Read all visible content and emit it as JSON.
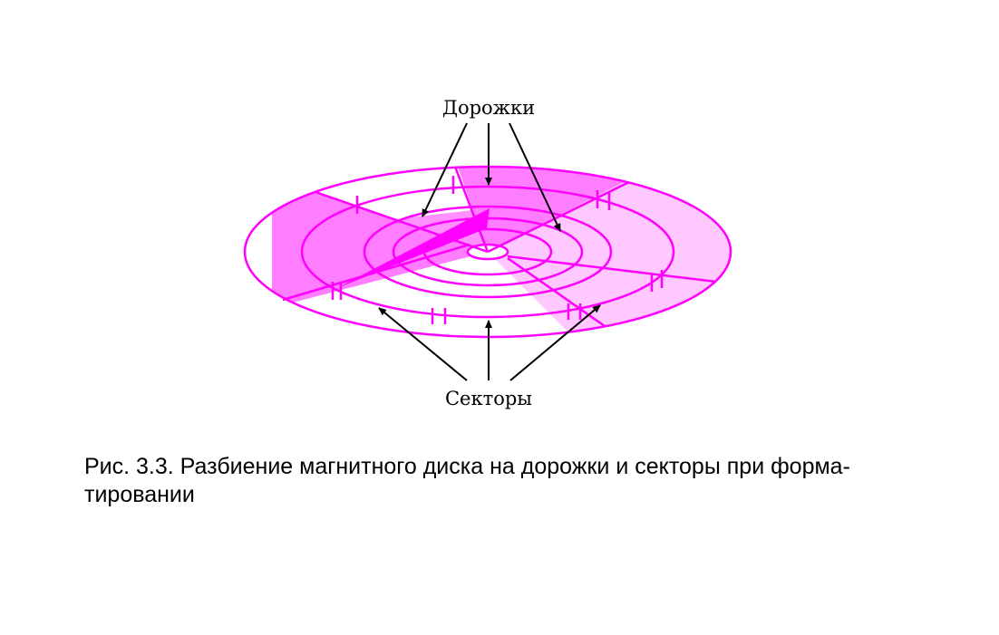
{
  "labels": {
    "tracks": "Дорожки",
    "sectors": "Секторы"
  },
  "caption": {
    "line1": "Рис. 3.3. Разбиение магнитного диска на дорожки и секторы при форма-",
    "line2": "тировании"
  },
  "colors": {
    "disk_light": "#ffc8ff",
    "disk_medium": "#ff7dff",
    "disk_dark": "#ff00ff",
    "disk_stroke": "#ff00ff",
    "arrow": "#000000"
  }
}
